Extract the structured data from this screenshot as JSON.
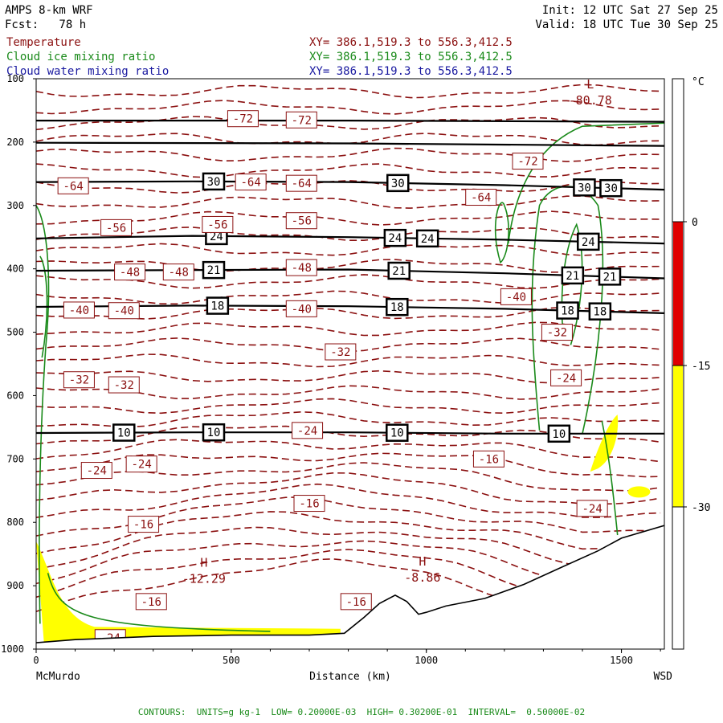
{
  "header": {
    "model": "AMPS 8-km WRF",
    "forecast": "Fcst:   78 h",
    "init": "Init: 12 UTC Sat 27 Sep 25",
    "valid": "Valid: 18 UTC Tue 30 Sep 25",
    "fields": [
      {
        "name": "Temperature",
        "xy": "XY= 386.1,519.3 to 556.3,412.5",
        "color": "#8b1010"
      },
      {
        "name": "Cloud ice mixing ratio",
        "xy": "XY= 386.1,519.3 to 556.3,412.5",
        "color": "#1a8a1a"
      },
      {
        "name": "Cloud water mixing ratio",
        "xy": "XY= 386.1,519.3 to 556.3,412.5",
        "color": "#1a1aa0"
      }
    ]
  },
  "footer": {
    "contours_text": "CONTOURS:  UNITS=g kg-1  LOW= 0.20000E-03  HIGH= 0.30200E-01  INTERVAL=  0.50000E-02"
  },
  "chart_data": {
    "type": "cross-section",
    "xlabel": "Distance (km)",
    "x_left_label": "McMurdo",
    "x_right_label": "WSD",
    "xlim": [
      0,
      1610
    ],
    "xticks": [
      0,
      500,
      1000,
      1500
    ],
    "ylim": [
      100,
      1000
    ],
    "yticks": [
      100,
      200,
      300,
      400,
      500,
      600,
      700,
      800,
      900,
      1000
    ],
    "ylabel_hidden": true,
    "colorbar": {
      "unit": "°C",
      "ticks": [
        0,
        -15,
        -30
      ],
      "bands": [
        {
          "from": 0,
          "to": -15,
          "color": "#e00000"
        },
        {
          "from": -15,
          "to": -30,
          "color": "#ffff00"
        }
      ]
    },
    "terrain_profile": [
      [
        0,
        990
      ],
      [
        100,
        985
      ],
      [
        300,
        980
      ],
      [
        500,
        978
      ],
      [
        700,
        978
      ],
      [
        790,
        975
      ],
      [
        840,
        950
      ],
      [
        880,
        928
      ],
      [
        920,
        915
      ],
      [
        950,
        925
      ],
      [
        980,
        945
      ],
      [
        1000,
        942
      ],
      [
        1050,
        932
      ],
      [
        1150,
        920
      ],
      [
        1250,
        898
      ],
      [
        1350,
        870
      ],
      [
        1440,
        845
      ],
      [
        1500,
        825
      ],
      [
        1610,
        805
      ]
    ],
    "isotherm_labels": [
      {
        "x": 530,
        "p": 163,
        "v": -72
      },
      {
        "x": 680,
        "p": 165,
        "v": -72
      },
      {
        "x": 1260,
        "p": 230,
        "v": -72
      },
      {
        "x": 95,
        "p": 269,
        "v": -64
      },
      {
        "x": 550,
        "p": 263,
        "v": -64
      },
      {
        "x": 680,
        "p": 265,
        "v": -64
      },
      {
        "x": 1140,
        "p": 287,
        "v": -64
      },
      {
        "x": 205,
        "p": 335,
        "v": -56
      },
      {
        "x": 465,
        "p": 330,
        "v": -56
      },
      {
        "x": 680,
        "p": 324,
        "v": -56
      },
      {
        "x": 240,
        "p": 405,
        "v": -48
      },
      {
        "x": 365,
        "p": 405,
        "v": -48
      },
      {
        "x": 680,
        "p": 398,
        "v": -48
      },
      {
        "x": 1230,
        "p": 444,
        "v": -40
      },
      {
        "x": 110,
        "p": 465,
        "v": -40
      },
      {
        "x": 225,
        "p": 466,
        "v": -40
      },
      {
        "x": 680,
        "p": 463,
        "v": -40
      },
      {
        "x": 1335,
        "p": 500,
        "v": -32
      },
      {
        "x": 780,
        "p": 531,
        "v": -32
      },
      {
        "x": 110,
        "p": 575,
        "v": -32
      },
      {
        "x": 225,
        "p": 583,
        "v": -32
      },
      {
        "x": 1358,
        "p": 572,
        "v": -24
      },
      {
        "x": 695,
        "p": 655,
        "v": -24
      },
      {
        "x": 155,
        "p": 718,
        "v": -24
      },
      {
        "x": 270,
        "p": 708,
        "v": -24
      },
      {
        "x": 1160,
        "p": 700,
        "v": -16
      },
      {
        "x": 700,
        "p": 770,
        "v": -16
      },
      {
        "x": 1425,
        "p": 778,
        "v": -24
      },
      {
        "x": 275,
        "p": 803,
        "v": -16
      },
      {
        "x": 295,
        "p": 925,
        "v": -16
      },
      {
        "x": 820,
        "p": 925,
        "v": -16
      },
      {
        "x": 190,
        "p": 982,
        "v": -24
      }
    ],
    "extrema": [
      {
        "type": "L",
        "x": 1420,
        "p": 115,
        "value": "-80.78"
      },
      {
        "type": "H",
        "x": 430,
        "p": 870,
        "value": "-12.29"
      },
      {
        "type": "H",
        "x": 990,
        "p": 868,
        "value": "-8.86"
      }
    ],
    "theta_lines": [
      {
        "label": "30",
        "points": [
          [
            0,
            263
          ],
          [
            400,
            262
          ],
          [
            800,
            263
          ],
          [
            1200,
            268
          ],
          [
            1610,
            275
          ]
        ],
        "boxes": [
          455,
          927,
          1405,
          1473
        ]
      },
      {
        "label": "24",
        "points": [
          [
            0,
            352
          ],
          [
            400,
            348
          ],
          [
            800,
            350
          ],
          [
            1200,
            354
          ],
          [
            1610,
            360
          ]
        ],
        "boxes": [
          462,
          920,
          1003,
          1415
        ]
      },
      {
        "label": "21",
        "points": [
          [
            0,
            403
          ],
          [
            400,
            402
          ],
          [
            800,
            401
          ],
          [
            1200,
            407
          ],
          [
            1610,
            415
          ]
        ],
        "boxes": [
          455,
          930,
          1375,
          1470
        ]
      },
      {
        "label": "18",
        "points": [
          [
            0,
            460
          ],
          [
            400,
            458
          ],
          [
            800,
            459
          ],
          [
            1200,
            463
          ],
          [
            1610,
            470
          ]
        ],
        "boxes": [
          465,
          925,
          1362,
          1445
        ]
      },
      {
        "label": "10",
        "points": [
          [
            0,
            659
          ],
          [
            400,
            658
          ],
          [
            800,
            658
          ],
          [
            1200,
            660
          ],
          [
            1610,
            660
          ]
        ],
        "boxes": [
          225,
          455,
          925,
          1340
        ]
      },
      {
        "label": "",
        "points": [
          [
            0,
            166
          ],
          [
            800,
            166
          ],
          [
            1610,
            168
          ]
        ],
        "boxes": []
      },
      {
        "label": "",
        "points": [
          [
            0,
            201
          ],
          [
            800,
            202
          ],
          [
            1610,
            206
          ]
        ],
        "boxes": []
      }
    ]
  }
}
